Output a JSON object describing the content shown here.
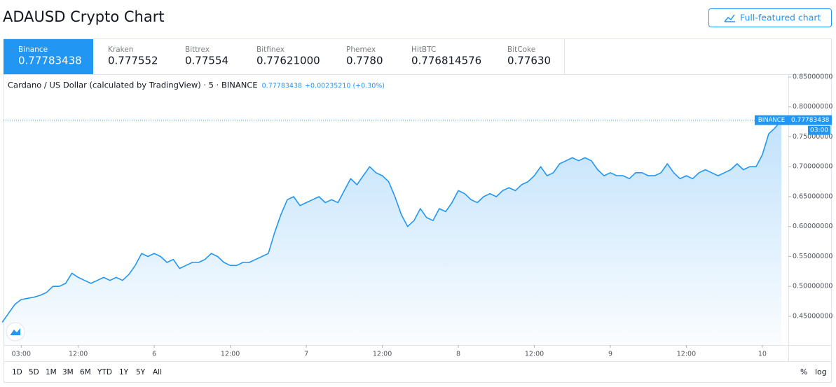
{
  "header": {
    "title": "ADAUSD Crypto Chart",
    "button": "Full-featured chart"
  },
  "exchanges": [
    {
      "name": "Binance",
      "price": "0.77783438"
    },
    {
      "name": "Kraken",
      "price": "0.777552"
    },
    {
      "name": "Bittrex",
      "price": "0.77554"
    },
    {
      "name": "Bitfinex",
      "price": "0.77621000"
    },
    {
      "name": "Phemex",
      "price": "0.7780"
    },
    {
      "name": "HitBTC",
      "price": "0.776814576"
    },
    {
      "name": "BitCoke",
      "price": "0.77630"
    }
  ],
  "chart_data": {
    "type": "area",
    "symbol": "Cardano / US Dollar (calculated by TradingView) · 5 · BINANCE",
    "change": "+0.00235210 (+0.30%)",
    "last_price": 0.77783438,
    "last_exchange": "BINANCE",
    "countdown": "03:00",
    "color": "#2196f3",
    "x": [
      -3,
      -2,
      -1,
      0,
      1,
      2,
      3,
      4,
      5,
      6,
      7,
      8,
      9,
      10,
      11,
      12,
      13,
      14,
      15,
      16,
      17,
      18,
      19,
      20,
      21,
      22,
      23,
      24,
      25,
      26,
      27,
      28,
      29,
      30,
      31,
      32,
      33,
      34,
      35,
      36,
      37,
      38,
      39,
      40,
      41,
      42,
      43,
      44,
      45,
      46,
      47,
      48,
      49,
      50,
      51,
      52,
      53,
      54,
      55,
      56,
      57,
      58,
      59,
      60,
      61,
      62,
      63,
      64,
      65,
      66,
      67,
      68,
      69,
      70,
      71,
      72,
      73,
      74,
      75,
      76,
      77,
      78,
      79,
      80,
      81,
      82,
      83,
      84,
      85,
      86,
      87,
      88,
      89,
      90,
      91,
      92,
      93,
      94,
      95,
      96,
      97,
      98,
      99,
      100,
      101,
      102,
      103,
      104,
      105,
      106,
      107,
      108,
      109,
      110,
      111,
      112,
      113,
      114,
      115,
      116,
      117,
      118,
      119,
      120
    ],
    "values": [
      0.44,
      0.455,
      0.47,
      0.478,
      0.48,
      0.482,
      0.485,
      0.49,
      0.5,
      0.5,
      0.505,
      0.522,
      0.515,
      0.51,
      0.505,
      0.51,
      0.515,
      0.51,
      0.515,
      0.51,
      0.52,
      0.535,
      0.555,
      0.55,
      0.555,
      0.55,
      0.54,
      0.545,
      0.53,
      0.535,
      0.54,
      0.54,
      0.545,
      0.555,
      0.55,
      0.54,
      0.535,
      0.535,
      0.54,
      0.54,
      0.545,
      0.55,
      0.555,
      0.59,
      0.62,
      0.645,
      0.65,
      0.635,
      0.64,
      0.645,
      0.65,
      0.64,
      0.645,
      0.64,
      0.66,
      0.68,
      0.67,
      0.685,
      0.7,
      0.69,
      0.685,
      0.675,
      0.65,
      0.62,
      0.6,
      0.61,
      0.63,
      0.615,
      0.61,
      0.63,
      0.625,
      0.64,
      0.66,
      0.655,
      0.645,
      0.64,
      0.65,
      0.655,
      0.65,
      0.66,
      0.665,
      0.66,
      0.67,
      0.675,
      0.685,
      0.7,
      0.685,
      0.69,
      0.705,
      0.71,
      0.715,
      0.71,
      0.715,
      0.71,
      0.695,
      0.685,
      0.69,
      0.685,
      0.685,
      0.68,
      0.69,
      0.69,
      0.685,
      0.685,
      0.69,
      0.705,
      0.69,
      0.68,
      0.685,
      0.68,
      0.69,
      0.695,
      0.69,
      0.685,
      0.69,
      0.695,
      0.705,
      0.695,
      0.7,
      0.7,
      0.72,
      0.755,
      0.765,
      0.778
    ],
    "xlim": [
      -2.8,
      121.1
    ],
    "xticks": [
      {
        "value": 0,
        "label": "03:00"
      },
      {
        "value": 9,
        "label": "12:00"
      },
      {
        "value": 21,
        "label": "6"
      },
      {
        "value": 33,
        "label": "12:00"
      },
      {
        "value": 45,
        "label": "7"
      },
      {
        "value": 57,
        "label": "12:00"
      },
      {
        "value": 69,
        "label": "8"
      },
      {
        "value": 81,
        "label": "12:00"
      },
      {
        "value": 93,
        "label": "9"
      },
      {
        "value": 105,
        "label": "12:00"
      },
      {
        "value": 117,
        "label": "10"
      }
    ],
    "ylim": [
      0.402,
      0.8535
    ],
    "yticks": [
      {
        "value": 0.45,
        "label": "0.45000000"
      },
      {
        "value": 0.5,
        "label": "0.50000000"
      },
      {
        "value": 0.55,
        "label": "0.55000000"
      },
      {
        "value": 0.6,
        "label": "0.60000000"
      },
      {
        "value": 0.65,
        "label": "0.65000000"
      },
      {
        "value": 0.7,
        "label": "0.70000000"
      },
      {
        "value": 0.75,
        "label": "0.75000000"
      },
      {
        "value": 0.8,
        "label": "0.80000000"
      },
      {
        "value": 0.85,
        "label": "0.85000000"
      }
    ]
  },
  "ranges": [
    "1D",
    "5D",
    "1M",
    "3M",
    "6M",
    "YTD",
    "1Y",
    "5Y",
    "All"
  ],
  "scale_options": [
    "%",
    "log"
  ]
}
